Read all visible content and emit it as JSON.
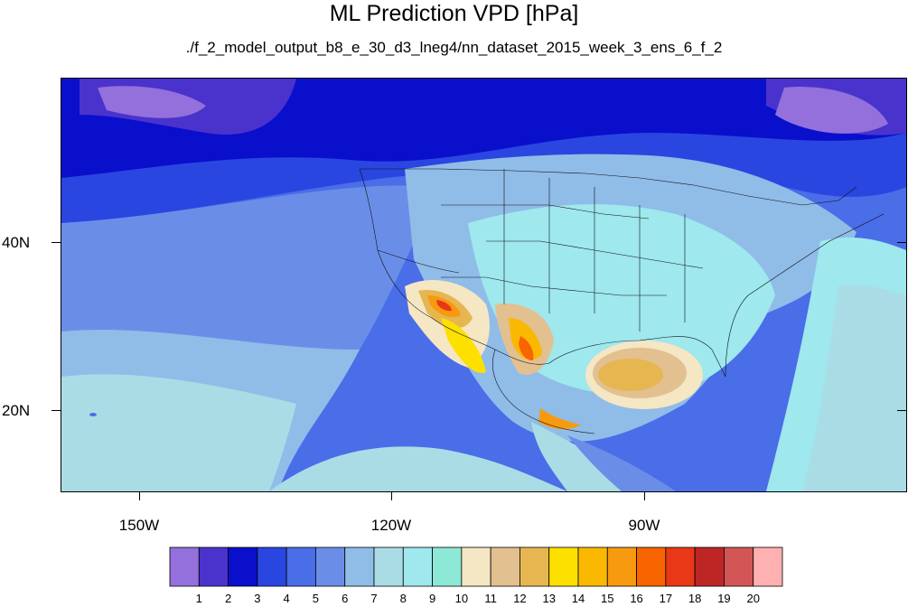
{
  "title": "ML Prediction VPD [hPa]",
  "subtitle": "./f_2_model_output_b8_e_30_d3_lneg4/nn_dataset_2015_week_3_ens_6_f_2",
  "map": {
    "lat_labels": [
      "40N",
      "20N"
    ],
    "lon_labels": [
      "150W",
      "120W",
      "90W"
    ]
  },
  "colorbar": {
    "levels": [
      "1",
      "2",
      "3",
      "4",
      "5",
      "6",
      "7",
      "8",
      "9",
      "10",
      "11",
      "12",
      "13",
      "14",
      "15",
      "16",
      "17",
      "18",
      "19",
      "20"
    ],
    "colors": [
      "#9370db",
      "#4a33cc",
      "#0a0fcc",
      "#2a46e0",
      "#4a6de8",
      "#6a8ee8",
      "#90bce8",
      "#aadce6",
      "#9ee8ee",
      "#8ee8d6",
      "#f5e6c4",
      "#e2c090",
      "#e6b650",
      "#fde000",
      "#fbb800",
      "#f79a10",
      "#f76400",
      "#e83818",
      "#be2626",
      "#d25656",
      "#ffb0b0"
    ]
  }
}
